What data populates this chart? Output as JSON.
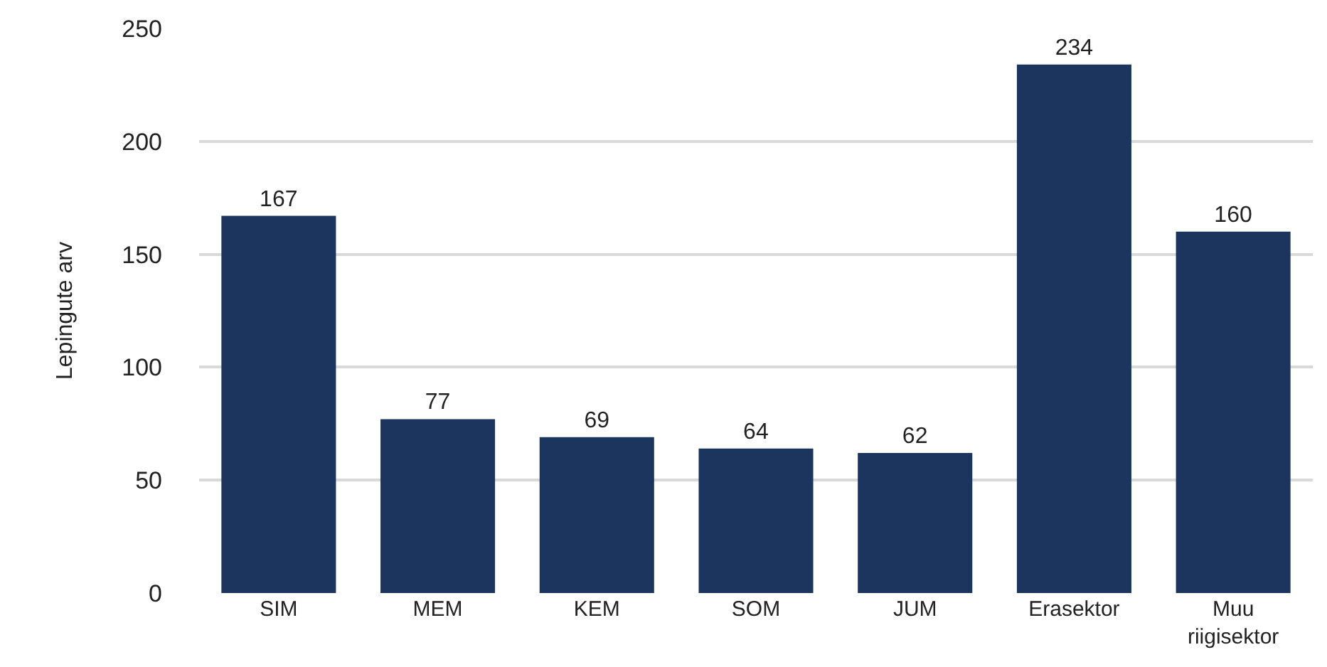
{
  "chart_data": {
    "type": "bar",
    "ylabel": "Lepingute arv",
    "categories": [
      "SIM",
      "MEM",
      "KEM",
      "SOM",
      "JUM",
      "Erasektor",
      "Muu riigisektor"
    ],
    "values": [
      167,
      77,
      69,
      64,
      62,
      234,
      160
    ],
    "color": "#1c355e",
    "ylim": [
      0,
      250
    ],
    "yticks": [
      0,
      50,
      100,
      150,
      200,
      250
    ],
    "grid": "y",
    "data_labels": true
  }
}
